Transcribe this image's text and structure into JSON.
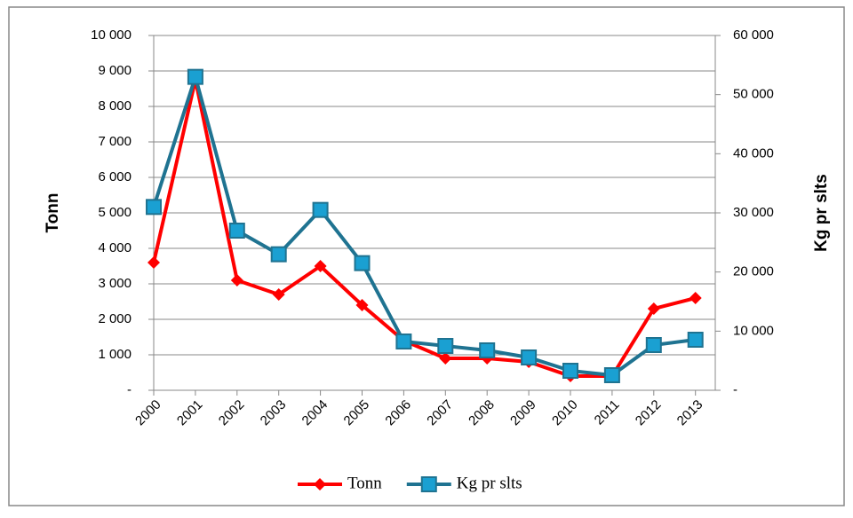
{
  "chart_data": {
    "type": "line",
    "categories": [
      "2000",
      "2001",
      "2002",
      "2003",
      "2004",
      "2005",
      "2006",
      "2007",
      "2008",
      "2009",
      "2010",
      "2011",
      "2012",
      "2013"
    ],
    "series": [
      {
        "name": "Tonn",
        "color": "#ff0000",
        "marker": "diamond",
        "values": [
          3600,
          8750,
          3100,
          2700,
          3500,
          2400,
          1400,
          900,
          900,
          800,
          400,
          400,
          2300,
          2600
        ]
      },
      {
        "name": "Kg pr slts",
        "color": "#1f7391",
        "marker": "square",
        "axis": "y2",
        "values": [
          31000,
          53000,
          27000,
          23000,
          30500,
          21500,
          8250,
          7500,
          6750,
          5550,
          3300,
          2550,
          7650,
          8550
        ]
      }
    ],
    "ylabel": "Tonn",
    "y2label": "Kg pr slts",
    "ylim": [
      0,
      10000
    ],
    "yticks": [
      {
        "value": 0,
        "label": "-"
      },
      {
        "value": 1000,
        "label": "1 000"
      },
      {
        "value": 2000,
        "label": "2 000"
      },
      {
        "value": 3000,
        "label": "3 000"
      },
      {
        "value": 4000,
        "label": "4 000"
      },
      {
        "value": 5000,
        "label": "5 000"
      },
      {
        "value": 6000,
        "label": "6 000"
      },
      {
        "value": 7000,
        "label": "7 000"
      },
      {
        "value": 8000,
        "label": "8 000"
      },
      {
        "value": 9000,
        "label": "9 000"
      },
      {
        "value": 10000,
        "label": "10 000"
      }
    ],
    "y2lim": [
      0,
      60000
    ],
    "y2ticks": [
      {
        "value": 0,
        "label": "-"
      },
      {
        "value": 10000,
        "label": "10 000"
      },
      {
        "value": 20000,
        "label": "20 000"
      },
      {
        "value": 30000,
        "label": "30 000"
      },
      {
        "value": 40000,
        "label": "40 000"
      },
      {
        "value": 50000,
        "label": "50 000"
      },
      {
        "value": 60000,
        "label": "60 000"
      }
    ],
    "grid": true,
    "legend": "bottom"
  }
}
